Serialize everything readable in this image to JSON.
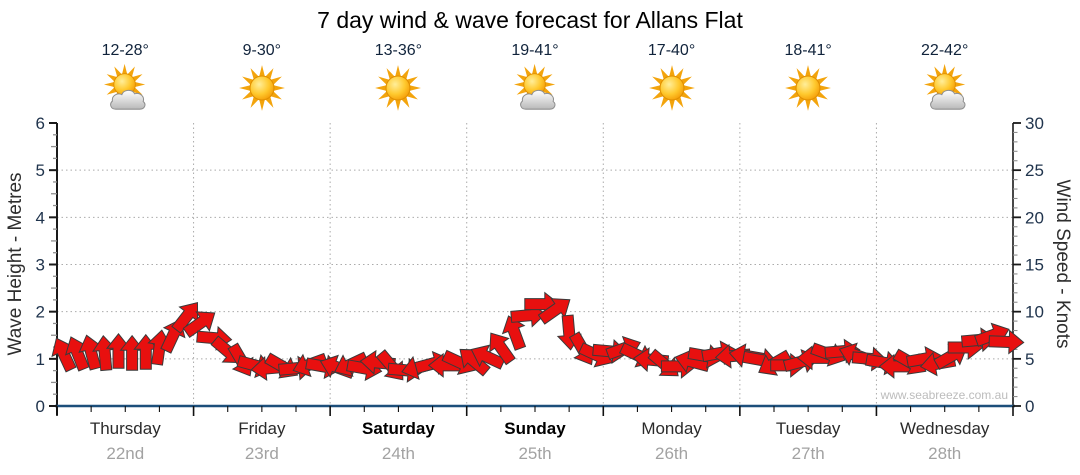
{
  "title": "7 day wind & wave forecast for Allans Flat",
  "watermark": "www.seabreeze.com.au",
  "days": [
    {
      "name": "Thursday",
      "date": "22nd",
      "temp": "12-28°",
      "icon": "sun-cloud",
      "bold": false
    },
    {
      "name": "Friday",
      "date": "23rd",
      "temp": "9-30°",
      "icon": "sun",
      "bold": false
    },
    {
      "name": "Saturday",
      "date": "24th",
      "temp": "13-36°",
      "icon": "sun",
      "bold": true
    },
    {
      "name": "Sunday",
      "date": "25th",
      "temp": "19-41°",
      "icon": "sun-cloud",
      "bold": true
    },
    {
      "name": "Monday",
      "date": "26th",
      "temp": "17-40°",
      "icon": "sun",
      "bold": false
    },
    {
      "name": "Tuesday",
      "date": "27th",
      "temp": "18-41°",
      "icon": "sun",
      "bold": false
    },
    {
      "name": "Wednesday",
      "date": "28th",
      "temp": "22-42°",
      "icon": "sun-cloud",
      "bold": false
    }
  ],
  "left_axis": {
    "label": "Wave Height - Metres",
    "ticks": [
      "0",
      "1",
      "2",
      "3",
      "4",
      "5",
      "6"
    ],
    "min": 0,
    "max": 6
  },
  "right_axis": {
    "label": "Wind Speed - Knots",
    "ticks": [
      "0",
      "5",
      "10",
      "15",
      "20",
      "25",
      "30"
    ],
    "min": 0,
    "max": 30
  },
  "chart_data": {
    "type": "scatter",
    "subtype": "wind-direction-arrows",
    "title": "7 day wind & wave forecast for Allans Flat",
    "categories": [
      "Thursday 22nd",
      "Friday 23rd",
      "Saturday 24th",
      "Sunday 25th",
      "Monday 26th",
      "Tuesday 27th",
      "Wednesday 28th"
    ],
    "samples_per_day": 10,
    "x_tick_interval_hours": 6,
    "y_axis_left": {
      "label": "Wave Height - Metres",
      "range": [
        0,
        6
      ]
    },
    "y_axis_right": {
      "label": "Wind Speed - Knots",
      "range": [
        0,
        30
      ]
    },
    "grid": true,
    "wind_speed_knots": [
      5.5,
      5.6,
      5.7,
      5.6,
      5.8,
      5.6,
      5.7,
      6.2,
      7.5,
      9.5,
      8.8,
      7.2,
      5.8,
      4.8,
      4.3,
      4.0,
      4.2,
      4.0,
      4.4,
      4.2,
      4.1,
      4.4,
      4.0,
      4.6,
      4.2,
      3.8,
      4.1,
      4.5,
      4.3,
      4.6,
      4.8,
      5.2,
      6.2,
      7.8,
      9.6,
      10.8,
      10.2,
      7.8,
      6.0,
      5.4,
      5.8,
      6.1,
      5.4,
      4.9,
      4.4,
      4.2,
      4.7,
      5.3,
      5.6,
      5.3,
      5.3,
      4.9,
      4.5,
      4.3,
      4.7,
      5.1,
      5.5,
      5.8,
      5.4,
      5.0,
      4.6,
      4.2,
      4.6,
      5.0,
      4.5,
      5.3,
      6.2,
      7.0,
      7.5,
      6.8
    ],
    "wind_dir_deg_cw_from_up": [
      -25,
      -22,
      -15,
      -5,
      0,
      0,
      0,
      8,
      25,
      38,
      55,
      95,
      130,
      150,
      105,
      -95,
      120,
      85,
      -110,
      100,
      -70,
      -115,
      100,
      -85,
      140,
      95,
      -105,
      75,
      -90,
      115,
      -50,
      -65,
      -35,
      -20,
      85,
      90,
      55,
      175,
      150,
      115,
      95,
      70,
      115,
      -85,
      130,
      90,
      -75,
      100,
      80,
      -95,
      -80,
      100,
      -120,
      90,
      75,
      -90,
      110,
      85,
      -70,
      95,
      100,
      -90,
      120,
      80,
      -100,
      60,
      90,
      85,
      70,
      92
    ]
  },
  "colors": {
    "arrow_fill": "#e8100f",
    "arrow_stroke": "#3a3a3a",
    "bottom_axis": "#1c4e7a",
    "axis_line": "#1a1a1a",
    "grid": "#ababab",
    "tick_label": "#20344d",
    "date_label": "#a2a2a2",
    "watermark": "#bcbcbc"
  }
}
